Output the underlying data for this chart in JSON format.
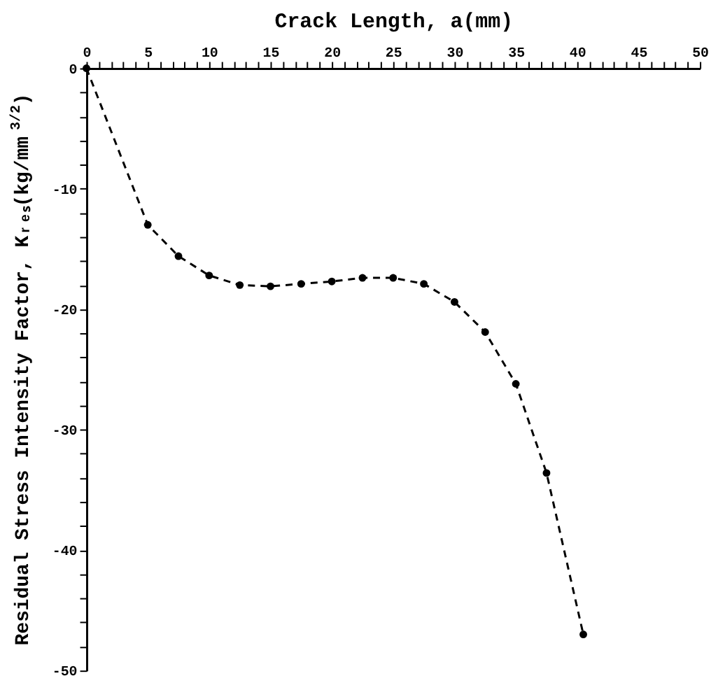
{
  "chart_data": {
    "type": "line",
    "xlabel": "Crack Length, a(mm)",
    "ylabel": "Residual Stress Intensity Factor, Kᵣₑₛ(kg/mm$^{3/2}$)",
    "x": [
      0,
      5,
      7.5,
      10,
      12.5,
      15,
      17.5,
      20,
      22.5,
      25,
      27.5,
      30,
      32.5,
      35,
      37.5,
      40.5
    ],
    "series": [
      {
        "color": "#000000",
        "values": [
          0,
          -13.0,
          -15.6,
          -17.2,
          -18.0,
          -18.1,
          -17.9,
          -17.7,
          -17.4,
          -17.4,
          -17.9,
          -19.4,
          -21.9,
          -26.2,
          -33.6,
          -47.0
        ]
      }
    ],
    "xlim": [
      0,
      50
    ],
    "ylim": [
      -50,
      0
    ],
    "xticks": [
      0,
      {
        "value": 1,
        "label": null
      },
      {
        "value": 2,
        "label": null
      },
      {
        "value": 3,
        "label": null
      },
      {
        "value": 4,
        "label": null
      },
      5,
      {
        "value": 6,
        "label": null
      },
      {
        "value": 7,
        "label": null
      },
      {
        "value": 8,
        "label": null
      },
      {
        "value": 9,
        "label": null
      },
      10,
      {
        "value": 11,
        "label": null
      },
      {
        "value": 12,
        "label": null
      },
      {
        "value": 13,
        "label": null
      },
      {
        "value": 14,
        "label": null
      },
      15,
      {
        "value": 16,
        "label": null
      },
      {
        "value": 17,
        "label": null
      },
      {
        "value": 18,
        "label": null
      },
      {
        "value": 19,
        "label": null
      },
      20,
      {
        "value": 21,
        "label": null
      },
      {
        "value": 22,
        "label": null
      },
      {
        "value": 23,
        "label": null
      },
      {
        "value": 24,
        "label": null
      },
      25,
      {
        "value": 26,
        "label": null
      },
      {
        "value": 27,
        "label": null
      },
      {
        "value": 28,
        "label": null
      },
      {
        "value": 29,
        "label": null
      },
      30,
      {
        "value": 31,
        "label": null
      },
      {
        "value": 32,
        "label": null
      },
      {
        "value": 33,
        "label": null
      },
      {
        "value": 34,
        "label": null
      },
      35,
      {
        "value": 36,
        "label": null
      },
      {
        "value": 37,
        "label": null
      },
      {
        "value": 38,
        "label": null
      },
      {
        "value": 39,
        "label": null
      },
      40,
      {
        "value": 41,
        "label": null
      },
      {
        "value": 42,
        "label": null
      },
      {
        "value": 43,
        "label": null
      },
      {
        "value": 44,
        "label": null
      },
      45,
      {
        "value": 46,
        "label": null
      },
      {
        "value": 47,
        "label": null
      },
      {
        "value": 48,
        "label": null
      },
      {
        "value": 49,
        "label": null
      },
      50
    ],
    "yticks": [
      0,
      {
        "value": -2,
        "label": null
      },
      {
        "value": -4,
        "label": null
      },
      {
        "value": -6,
        "label": null
      },
      {
        "value": -8,
        "label": null
      },
      -10,
      {
        "value": -12,
        "label": null
      },
      {
        "value": -14,
        "label": null
      },
      {
        "value": -16,
        "label": null
      },
      {
        "value": -18,
        "label": null
      },
      -20,
      {
        "value": -22,
        "label": null
      },
      {
        "value": -24,
        "label": null
      },
      {
        "value": -26,
        "label": null
      },
      {
        "value": -28,
        "label": null
      },
      -30,
      {
        "value": -32,
        "label": null
      },
      {
        "value": -34,
        "label": null
      },
      {
        "value": -36,
        "label": null
      },
      {
        "value": -38,
        "label": null
      },
      -40,
      {
        "value": -42,
        "label": null
      },
      {
        "value": -44,
        "label": null
      },
      {
        "value": -46,
        "label": null
      },
      {
        "value": -48,
        "label": null
      },
      -50
    ],
    "grid": false,
    "marker": "circle",
    "line_style": "dashed"
  }
}
